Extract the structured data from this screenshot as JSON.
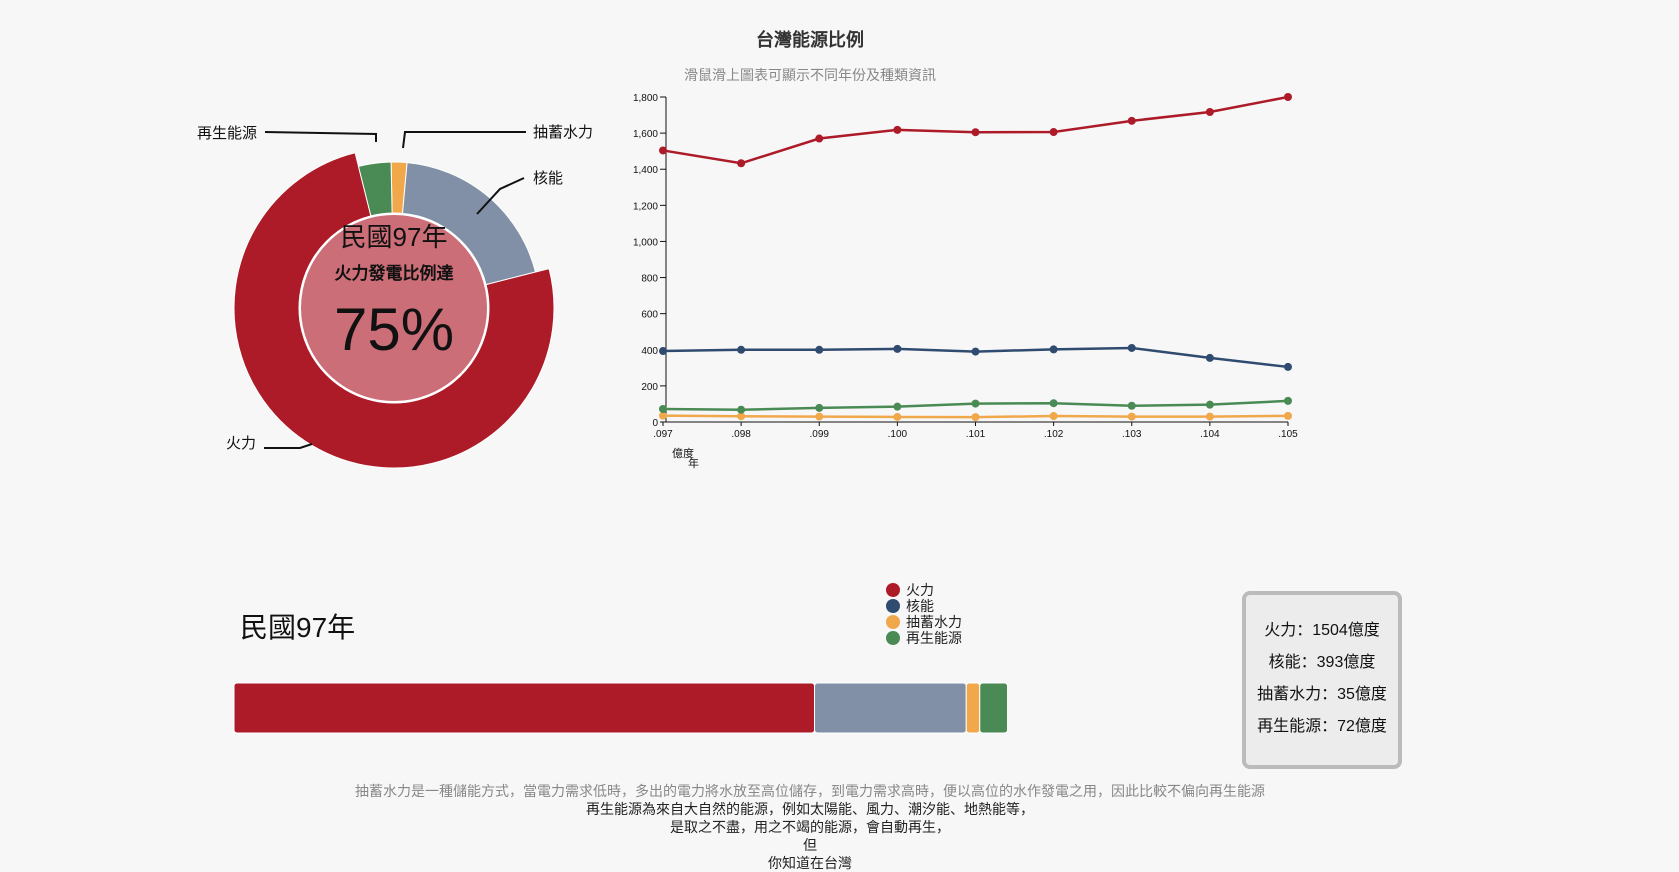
{
  "header": {
    "title": "台灣能源比例",
    "subtitle": "滑鼠滑上圖表可顯示不同年份及種類資訊"
  },
  "colors": {
    "thermal": "#ad1a28",
    "nuclear": "#2f4b70",
    "nuclear_donut": "#8190a6",
    "pumped_hydro": "#f0a84b",
    "renewable": "#4a8a54",
    "center": "#cc6e77"
  },
  "donut": {
    "center_year": "民國97年",
    "center_caption": "火力發電比例達",
    "center_percent": "75%",
    "labels": {
      "thermal": "火力",
      "nuclear": "核能",
      "pumped_hydro": "抽蓄水力",
      "renewable": "再生能源"
    }
  },
  "chart_data": {
    "type": "line",
    "x": [
      ".097",
      ".098",
      ".099",
      ".100",
      ".101",
      ".102",
      ".103",
      ".104",
      ".105"
    ],
    "ylabel": "億度",
    "xlabel": "年",
    "ylim": [
      0,
      1800
    ],
    "yticks": [
      "0",
      "200",
      "400",
      "600",
      "800",
      "1,000",
      "1,200",
      "1,400",
      "1,600",
      "1,800"
    ],
    "series": [
      {
        "name": "火力",
        "key": "thermal",
        "values": [
          1504,
          1433,
          1570,
          1618,
          1605,
          1606,
          1668,
          1717,
          1800
        ]
      },
      {
        "name": "核能",
        "key": "nuclear",
        "values": [
          393,
          400,
          400,
          405,
          390,
          402,
          410,
          355,
          305
        ]
      },
      {
        "name": "抽蓄水力",
        "key": "pumped_hydro",
        "values": [
          35,
          32,
          30,
          28,
          27,
          33,
          30,
          30,
          34
        ]
      },
      {
        "name": "再生能源",
        "key": "renewable",
        "values": [
          72,
          68,
          78,
          85,
          102,
          104,
          90,
          96,
          117
        ]
      }
    ]
  },
  "bottom": {
    "year_label": "民國97年",
    "legend": [
      {
        "label": "火力",
        "key": "thermal"
      },
      {
        "label": "核能",
        "key": "nuclear"
      },
      {
        "label": "抽蓄水力",
        "key": "pumped_hydro"
      },
      {
        "label": "再生能源",
        "key": "renewable"
      }
    ],
    "info": {
      "thermal": "火力：1504億度",
      "nuclear": "核能：393億度",
      "pumped_hydro": "抽蓄水力：35億度",
      "renewable": "再生能源：72億度"
    },
    "stacked_values": {
      "thermal": 1504,
      "nuclear": 393,
      "pumped_hydro": 35,
      "renewable": 72
    }
  },
  "notes": {
    "line1": "抽蓄水力是一種儲能方式，當電力需求低時，多出的電力將水放至高位儲存，到電力需求高時，便以高位的水作發電之用，因此比較不偏向再生能源",
    "line2": "再生能源為來自大自然的能源，例如太陽能、風力、潮汐能、地熱能等，",
    "line3": "是取之不盡，用之不竭的能源，會自動再生，",
    "line4": "但",
    "line5": "你知道在台灣"
  }
}
